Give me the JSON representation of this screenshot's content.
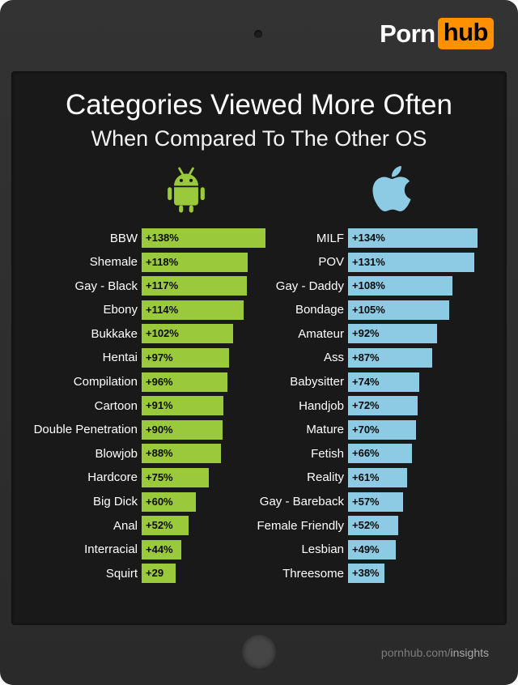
{
  "logo": {
    "porn": "Porn",
    "hub": "hub",
    "hub_bg": "#ff9000"
  },
  "header": {
    "title": "Categories Viewed More Often",
    "subtitle": "When Compared To The Other OS"
  },
  "footer": {
    "site": "pornhub.com/",
    "page": "insights"
  },
  "chart_data": {
    "type": "bar",
    "orientation": "horizontal",
    "title": "Categories Viewed More Often",
    "subtitle": "When Compared To The Other OS",
    "value_unit": "percent more often viewed",
    "legend_position": "icons-above-columns",
    "grid": false,
    "series": [
      {
        "name": "Android",
        "icon": "android-icon",
        "color": "#9aca3c",
        "data": [
          {
            "category": "BBW",
            "value": 138,
            "label": "+138%"
          },
          {
            "category": "Shemale",
            "value": 118,
            "label": "+118%"
          },
          {
            "category": "Gay - Black",
            "value": 117,
            "label": "+117%"
          },
          {
            "category": "Ebony",
            "value": 114,
            "label": "+114%"
          },
          {
            "category": "Bukkake",
            "value": 102,
            "label": "+102%"
          },
          {
            "category": "Hentai",
            "value": 97,
            "label": "+97%"
          },
          {
            "category": "Compilation",
            "value": 96,
            "label": "+96%"
          },
          {
            "category": "Cartoon",
            "value": 91,
            "label": "+91%"
          },
          {
            "category": "Double Penetration",
            "value": 90,
            "label": "+90%"
          },
          {
            "category": "Blowjob",
            "value": 88,
            "label": "+88%"
          },
          {
            "category": "Hardcore",
            "value": 75,
            "label": "+75%"
          },
          {
            "category": "Big Dick",
            "value": 60,
            "label": "+60%"
          },
          {
            "category": "Anal",
            "value": 52,
            "label": "+52%"
          },
          {
            "category": "Interracial",
            "value": 44,
            "label": "+44%"
          },
          {
            "category": "Squirt",
            "value": 29,
            "label": "+29"
          }
        ]
      },
      {
        "name": "iOS",
        "icon": "apple-icon",
        "color": "#8ccbe3",
        "data": [
          {
            "category": "MILF",
            "value": 134,
            "label": "+134%"
          },
          {
            "category": "POV",
            "value": 131,
            "label": "+131%"
          },
          {
            "category": "Gay - Daddy",
            "value": 108,
            "label": "+108%"
          },
          {
            "category": "Bondage",
            "value": 105,
            "label": "+105%"
          },
          {
            "category": "Amateur",
            "value": 92,
            "label": "+92%"
          },
          {
            "category": "Ass",
            "value": 87,
            "label": "+87%"
          },
          {
            "category": "Babysitter",
            "value": 74,
            "label": "+74%"
          },
          {
            "category": "Handjob",
            "value": 72,
            "label": "+72%"
          },
          {
            "category": "Mature",
            "value": 70,
            "label": "+70%"
          },
          {
            "category": "Fetish",
            "value": 66,
            "label": "+66%"
          },
          {
            "category": "Reality",
            "value": 61,
            "label": "+61%"
          },
          {
            "category": "Gay - Bareback",
            "value": 57,
            "label": "+57%"
          },
          {
            "category": "Female Friendly",
            "value": 52,
            "label": "+52%"
          },
          {
            "category": "Lesbian",
            "value": 49,
            "label": "+49%"
          },
          {
            "category": "Threesome",
            "value": 38,
            "label": "+38%"
          }
        ]
      }
    ]
  }
}
